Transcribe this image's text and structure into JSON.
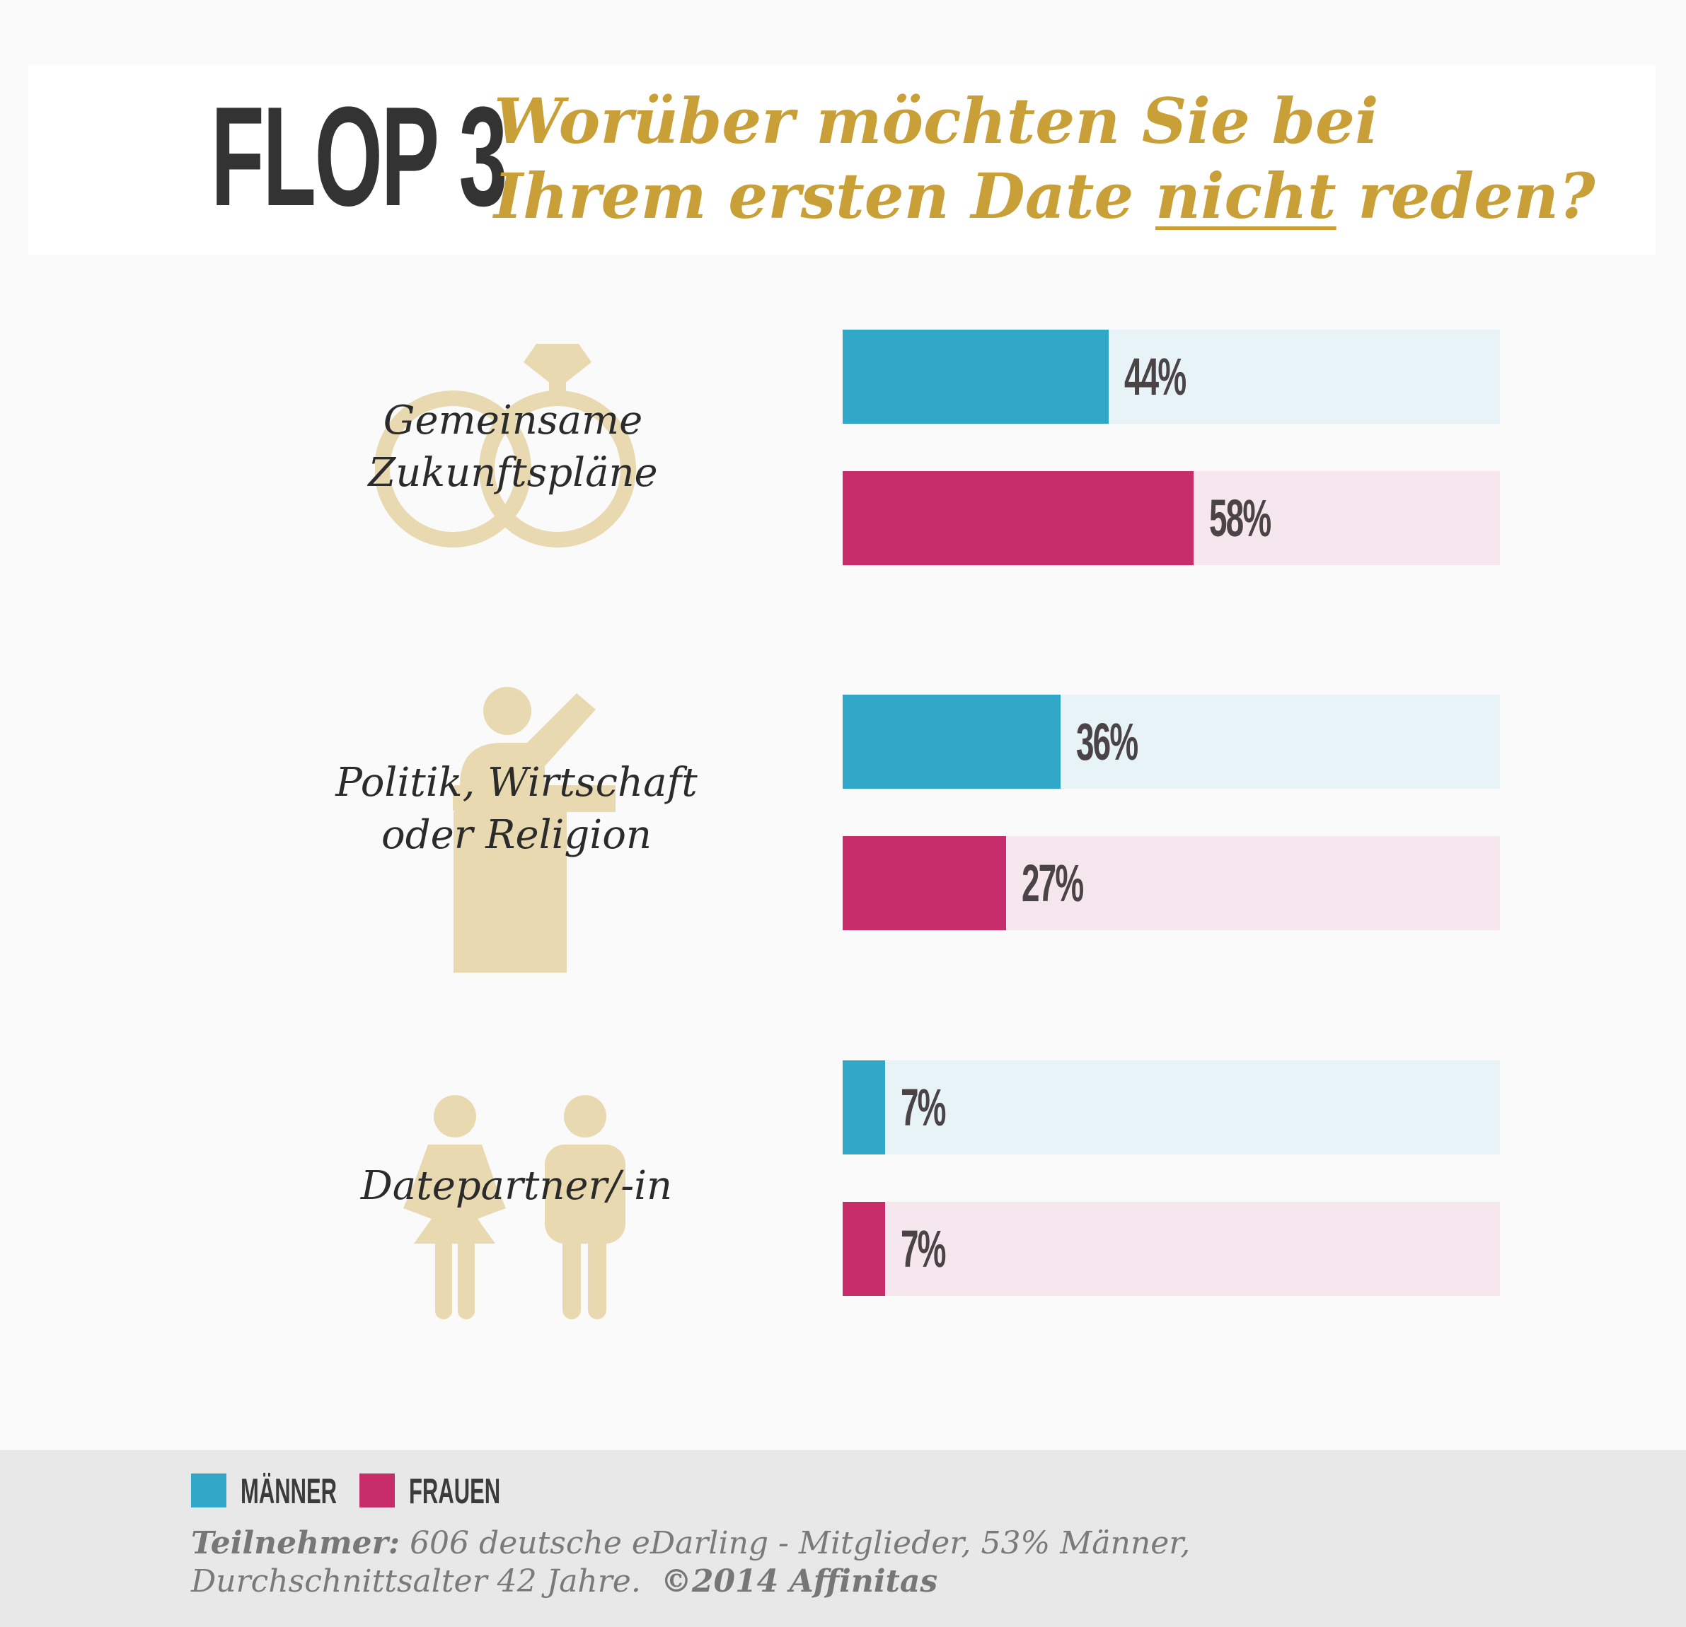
{
  "header": {
    "flop_label": "FLOP 3",
    "question_line1": "Worüber möchten Sie bei",
    "question_line2_pre": "Ihrem ersten Date ",
    "question_line2_emph": "nicht",
    "question_line2_post": " reden?"
  },
  "colors": {
    "maenner": "#31a8c8",
    "maenner_track": "#e8f3f8",
    "frauen": "#c62d6a",
    "frauen_track": "#f6e6ed",
    "gold": "#c9a037",
    "icon": "#e9d9b0"
  },
  "chart_data": {
    "type": "bar",
    "orientation": "horizontal",
    "categories": [
      {
        "line1": "Gemeinsame",
        "line2": "Zukunftspläne",
        "icon": "wedding-rings-icon"
      },
      {
        "line1": "Politik, Wirtschaft",
        "line2": "oder Religion",
        "icon": "speaker-podium-icon"
      },
      {
        "line1": "Datepartner/-in",
        "line2": "",
        "icon": "couple-icon"
      }
    ],
    "series": [
      {
        "name": "MÄNNER",
        "values": [
          44,
          36,
          7
        ],
        "labels": [
          "44%",
          "36%",
          "7%"
        ]
      },
      {
        "name": "FRAUEN",
        "values": [
          58,
          27,
          7
        ],
        "labels": [
          "58%",
          "27%",
          "7%"
        ]
      }
    ],
    "xlim": [
      0,
      100
    ],
    "legend_position": "bottom-left"
  },
  "footer": {
    "legend_maenner": "MÄNNER",
    "legend_frauen": "FRAUEN",
    "note_bold": "Teilnehmer:",
    "note_rest1": " 606 deutsche eDarling - Mitglieder, 53% Männer,",
    "note_line2": "Durchschnittsalter 42 Jahre.",
    "note_copyright": "©2014 Affinitas"
  }
}
